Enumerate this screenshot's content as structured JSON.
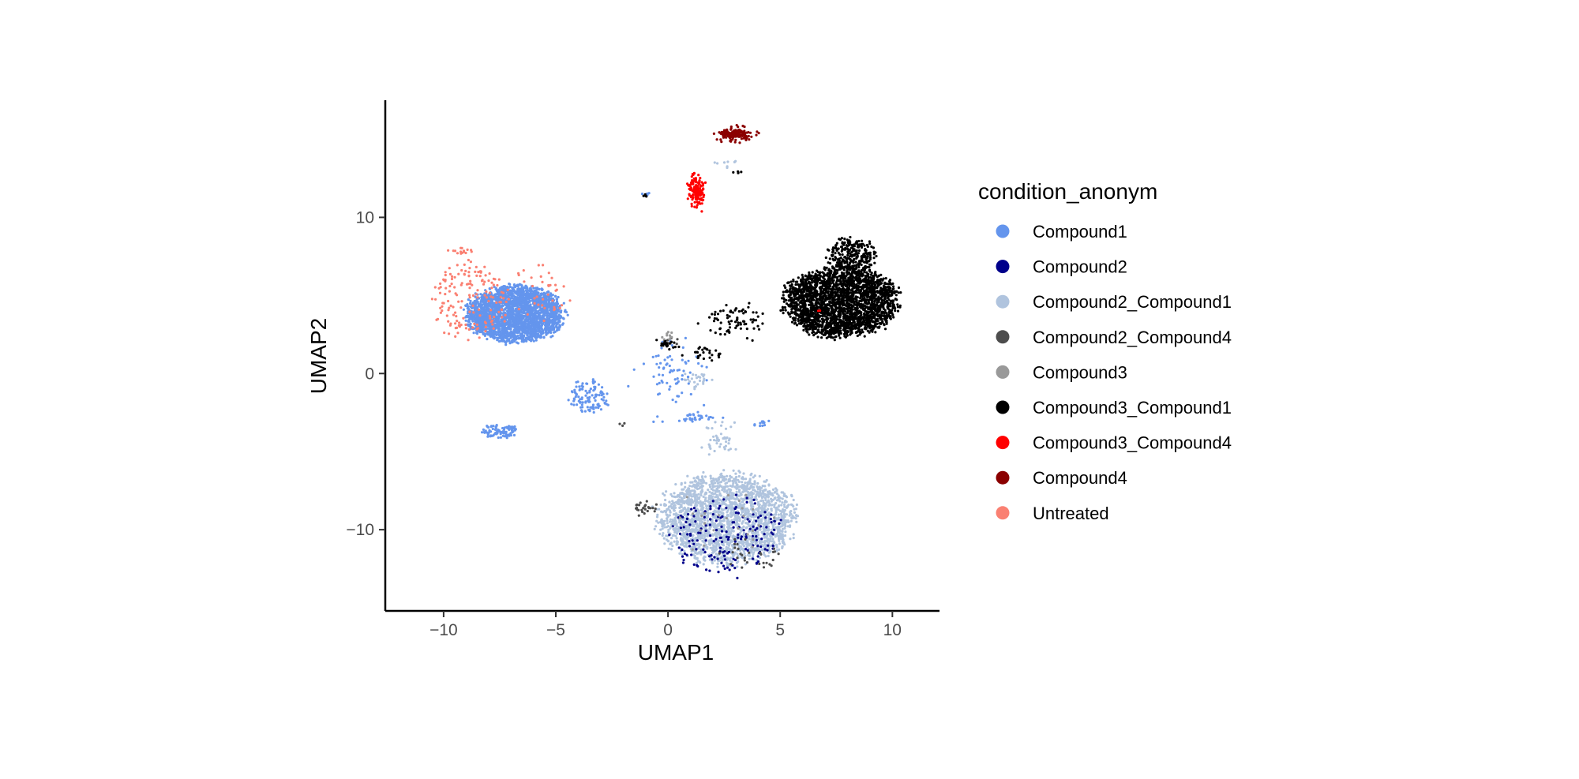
{
  "chart_data": {
    "type": "scatter",
    "title": "",
    "xlabel": "UMAP1",
    "ylabel": "UMAP2",
    "xlim": [
      -12.6,
      12.1
    ],
    "ylim": [
      -15.2,
      17.5
    ],
    "x_ticks": [
      -10,
      -5,
      0,
      5,
      10
    ],
    "y_ticks": [
      -10,
      0,
      10
    ],
    "x_tick_labels": [
      "−10",
      "−5",
      "0",
      "5",
      "10"
    ],
    "y_tick_labels": [
      "−10",
      "0",
      "10"
    ],
    "grid": false,
    "legend": {
      "title": "condition_anonym",
      "placement": "right",
      "entries": [
        {
          "label": "Compound1",
          "color": "#6495ED"
        },
        {
          "label": "Compound2",
          "color": "#00008B"
        },
        {
          "label": "Compound2_Compound1",
          "color": "#B0C4DE"
        },
        {
          "label": "Compound2_Compound4",
          "color": "#4D4D4D"
        },
        {
          "label": "Compound3",
          "color": "#999999"
        },
        {
          "label": "Compound3_Compound1",
          "color": "#000000"
        },
        {
          "label": "Compound3_Compound4",
          "color": "#FF0000"
        },
        {
          "label": "Compound4",
          "color": "#8B0000"
        },
        {
          "label": "Untreated",
          "color": "#FA8072"
        }
      ]
    },
    "series": [
      {
        "name": "Compound1",
        "clusters": [
          {
            "center": [
              -6.8,
              3.8
            ],
            "spread": [
              2.4,
              2.0
            ],
            "n": 2600,
            "shape": "uniform"
          },
          {
            "center": [
              -7.5,
              -3.7
            ],
            "spread": [
              0.9,
              0.5
            ],
            "n": 90,
            "shape": "uniform"
          },
          {
            "center": [
              -3.5,
              -1.5
            ],
            "spread": [
              1.0,
              1.2
            ],
            "n": 110,
            "shape": "uniform"
          },
          {
            "center": [
              0.2,
              0.2
            ],
            "spread": [
              1.3,
              2.0
            ],
            "n": 70,
            "shape": "gauss"
          },
          {
            "center": [
              1.0,
              -2.9
            ],
            "spread": [
              1.3,
              0.3
            ],
            "n": 35,
            "shape": "gauss"
          },
          {
            "center": [
              4.2,
              -3.2
            ],
            "spread": [
              0.4,
              0.2
            ],
            "n": 12,
            "shape": "gauss"
          },
          {
            "center": [
              -0.9,
              11.5
            ],
            "spread": [
              0.2,
              0.1
            ],
            "n": 5,
            "shape": "gauss"
          }
        ]
      },
      {
        "name": "Untreated",
        "clusters": [
          {
            "center": [
              -8.8,
              4.6
            ],
            "spread": [
              1.8,
              2.8
            ],
            "n": 160,
            "shape": "uniform"
          },
          {
            "center": [
              -5.8,
              5.0
            ],
            "spread": [
              1.5,
              2.0
            ],
            "n": 40,
            "shape": "uniform"
          },
          {
            "center": [
              -9.3,
              7.8
            ],
            "spread": [
              0.5,
              0.3
            ],
            "n": 15,
            "shape": "gauss"
          }
        ]
      },
      {
        "name": "Compound2_Compound1",
        "clusters": [
          {
            "center": [
              2.6,
              -9.3
            ],
            "spread": [
              3.4,
              3.2
            ],
            "n": 2200,
            "shape": "uniform"
          },
          {
            "center": [
              2.4,
              -4.2
            ],
            "spread": [
              0.9,
              1.0
            ],
            "n": 45,
            "shape": "gauss"
          },
          {
            "center": [
              1.2,
              -0.4
            ],
            "spread": [
              0.6,
              0.6
            ],
            "n": 25,
            "shape": "gauss"
          },
          {
            "center": [
              2.5,
              13.5
            ],
            "spread": [
              0.4,
              0.5
            ],
            "n": 8,
            "shape": "gauss"
          }
        ]
      },
      {
        "name": "Compound2",
        "clusters": [
          {
            "center": [
              2.6,
              -10.4
            ],
            "spread": [
              2.9,
              2.8
            ],
            "n": 170,
            "shape": "uniform"
          }
        ]
      },
      {
        "name": "Compound2_Compound4",
        "clusters": [
          {
            "center": [
              -1.1,
              -8.6
            ],
            "spread": [
              0.45,
              0.35
            ],
            "n": 25,
            "shape": "gauss"
          },
          {
            "center": [
              3.6,
              -11.6
            ],
            "spread": [
              1.6,
              1.3
            ],
            "n": 30,
            "shape": "uniform"
          },
          {
            "center": [
              0.1,
              2.0
            ],
            "spread": [
              0.3,
              0.3
            ],
            "n": 8,
            "shape": "gauss"
          },
          {
            "center": [
              -2.1,
              -3.2
            ],
            "spread": [
              0.2,
              0.2
            ],
            "n": 3,
            "shape": "gauss"
          }
        ]
      },
      {
        "name": "Compound3",
        "clusters": [
          {
            "center": [
              0.0,
              2.4
            ],
            "spread": [
              0.3,
              0.3
            ],
            "n": 10,
            "shape": "gauss"
          },
          {
            "center": [
              2.5,
              -9.5
            ],
            "spread": [
              2.5,
              2.5
            ],
            "n": 25,
            "shape": "uniform"
          }
        ]
      },
      {
        "name": "Compound3_Compound1",
        "clusters": [
          {
            "center": [
              7.7,
              4.6
            ],
            "spread": [
              2.8,
              2.5
            ],
            "n": 2500,
            "shape": "uniform"
          },
          {
            "center": [
              8.2,
              7.6
            ],
            "spread": [
              1.2,
              1.2
            ],
            "n": 260,
            "shape": "uniform"
          },
          {
            "center": [
              3.1,
              3.4
            ],
            "spread": [
              1.5,
              1.0
            ],
            "n": 80,
            "shape": "gauss"
          },
          {
            "center": [
              1.6,
              1.3
            ],
            "spread": [
              0.8,
              0.5
            ],
            "n": 30,
            "shape": "gauss"
          },
          {
            "center": [
              0.0,
              1.8
            ],
            "spread": [
              0.4,
              0.4
            ],
            "n": 20,
            "shape": "gauss"
          },
          {
            "center": [
              3.0,
              12.9
            ],
            "spread": [
              0.25,
              0.1
            ],
            "n": 5,
            "shape": "gauss"
          },
          {
            "center": [
              -1.0,
              11.4
            ],
            "spread": [
              0.1,
              0.1
            ],
            "n": 4,
            "shape": "gauss"
          }
        ]
      },
      {
        "name": "Compound3_Compound4",
        "clusters": [
          {
            "center": [
              1.3,
              11.7
            ],
            "spread": [
              0.35,
              0.9
            ],
            "n": 150,
            "shape": "gauss"
          },
          {
            "center": [
              6.7,
              4.0
            ],
            "spread": [
              0.2,
              0.2
            ],
            "n": 2,
            "shape": "gauss"
          }
        ]
      },
      {
        "name": "Compound4",
        "clusters": [
          {
            "center": [
              3.0,
              15.3
            ],
            "spread": [
              0.75,
              0.38
            ],
            "n": 170,
            "shape": "gauss"
          }
        ]
      }
    ]
  }
}
